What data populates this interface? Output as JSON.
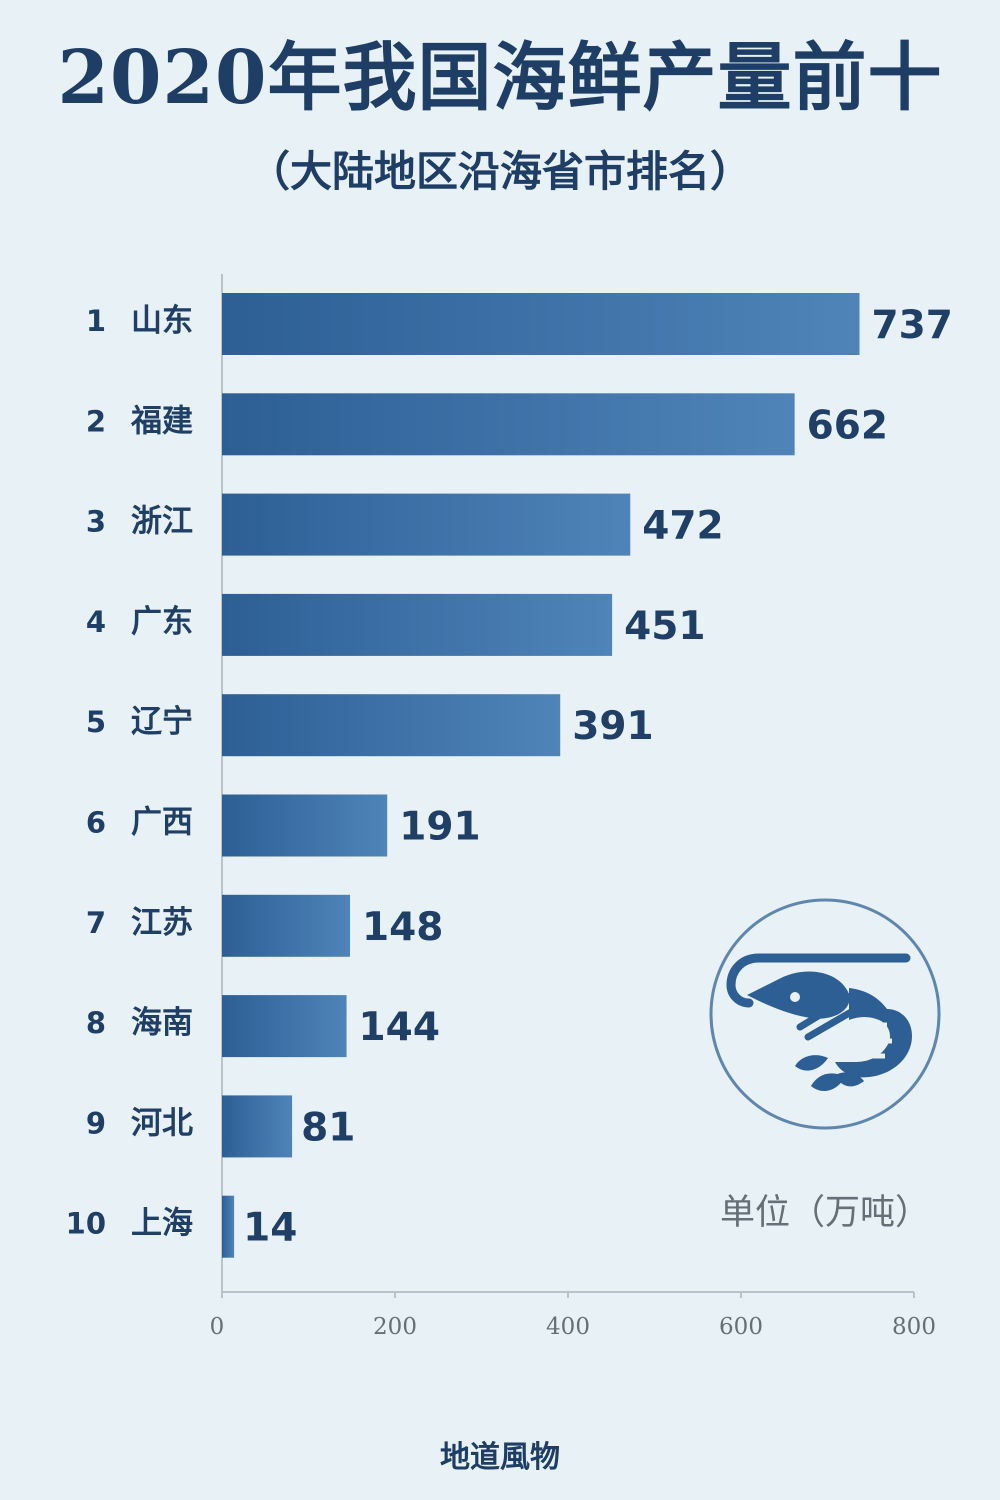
{
  "title": "2020年我国海鲜产量前十",
  "subtitle": "（大陆地区沿海省市排名）",
  "unit": "单位（万吨）",
  "brand": "地道風物",
  "icon": "shrimp-icon",
  "colors": {
    "background": "#e8f1f5",
    "text": "#1f3f66",
    "bar_start": "#2d5f95",
    "bar_end": "#4f84b9",
    "tick_text": "#666f78",
    "axis": "#b9c3cb"
  },
  "chart_data": {
    "type": "bar",
    "orientation": "horizontal",
    "ranks": [
      "1",
      "2",
      "3",
      "4",
      "5",
      "6",
      "7",
      "8",
      "9",
      "10"
    ],
    "categories": [
      "山东",
      "福建",
      "浙江",
      "广东",
      "辽宁",
      "广西",
      "江苏",
      "海南",
      "河北",
      "上海"
    ],
    "values": [
      737,
      662,
      472,
      451,
      391,
      191,
      148,
      144,
      81,
      14
    ],
    "data_labels": [
      "737",
      "662",
      "472",
      "451",
      "391",
      "191",
      "148",
      "144",
      "81",
      "14"
    ],
    "xlim": [
      0,
      800
    ],
    "xticks": [
      0,
      200,
      400,
      600,
      800
    ],
    "xtick_labels": [
      "0",
      "200",
      "400",
      "600",
      "800"
    ],
    "grid": false,
    "legend": "none"
  }
}
